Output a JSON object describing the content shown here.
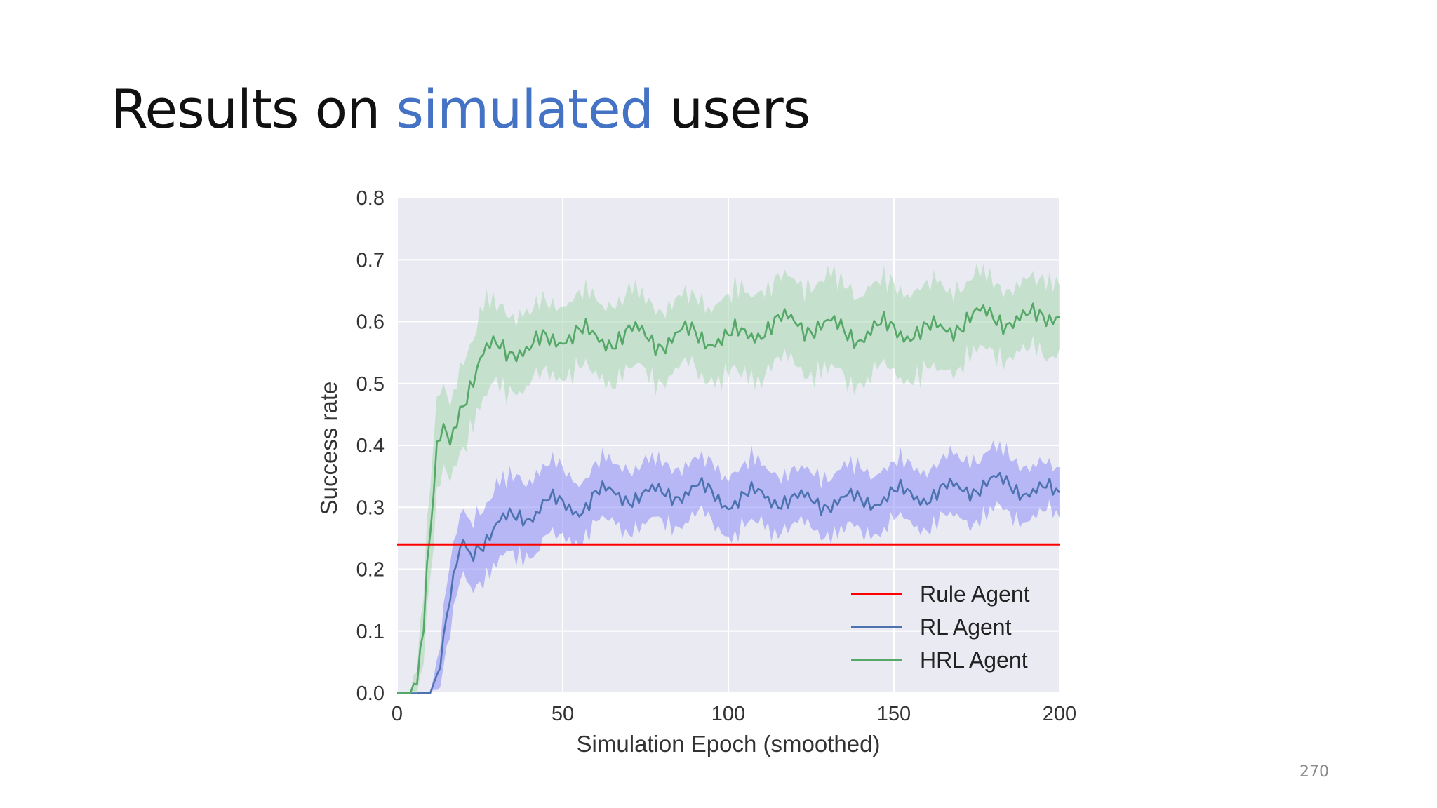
{
  "slide": {
    "title_before": "Results on",
    "title_accent": "simulated",
    "title_after": "users",
    "accent_color": "#4472c4",
    "page_number": "270"
  },
  "chart_data": {
    "type": "line",
    "title": "",
    "xlabel": "Simulation Epoch (smoothed)",
    "ylabel": "Success rate",
    "xlim": [
      0,
      200
    ],
    "ylim": [
      0,
      0.8
    ],
    "xticks": [
      0,
      50,
      100,
      150,
      200
    ],
    "yticks": [
      0.0,
      0.1,
      0.2,
      0.3,
      0.4,
      0.5,
      0.6,
      0.7,
      0.8
    ],
    "xtick_labels": [
      "0",
      "50",
      "100",
      "150",
      "200"
    ],
    "ytick_labels": [
      "0.0",
      "0.1",
      "0.2",
      "0.3",
      "0.4",
      "0.5",
      "0.6",
      "0.7",
      "0.8"
    ],
    "grid": true,
    "background": "#eaeaf2",
    "legend_position": "bottom-right",
    "series": [
      {
        "name": "Rule Agent",
        "color": "#ff0000",
        "kind": "constant",
        "x": [
          0,
          200
        ],
        "y": [
          0.24,
          0.24
        ]
      },
      {
        "name": "RL Agent",
        "color": "#4c72b0",
        "band_color": "#8c8cf7",
        "kind": "line-with-band",
        "x": [
          0,
          10,
          12,
          14,
          16,
          18,
          20,
          22,
          24,
          26,
          28,
          30,
          35,
          40,
          45,
          50,
          55,
          60,
          70,
          80,
          90,
          100,
          110,
          120,
          130,
          140,
          150,
          160,
          170,
          180,
          190,
          200
        ],
        "y": [
          0.0,
          0.0,
          0.03,
          0.09,
          0.15,
          0.2,
          0.24,
          0.22,
          0.24,
          0.25,
          0.26,
          0.27,
          0.28,
          0.29,
          0.31,
          0.3,
          0.3,
          0.32,
          0.32,
          0.32,
          0.33,
          0.31,
          0.32,
          0.31,
          0.31,
          0.31,
          0.32,
          0.32,
          0.33,
          0.34,
          0.33,
          0.32
        ],
        "band": [
          0.0,
          0.0,
          0.02,
          0.04,
          0.05,
          0.05,
          0.05,
          0.05,
          0.05,
          0.05,
          0.05,
          0.05,
          0.05,
          0.05,
          0.05,
          0.05,
          0.04,
          0.04,
          0.04,
          0.04,
          0.04,
          0.04,
          0.04,
          0.04,
          0.04,
          0.04,
          0.04,
          0.04,
          0.04,
          0.04,
          0.04,
          0.03
        ]
      },
      {
        "name": "HRL Agent",
        "color": "#55a868",
        "band_color": "#a6d8ae",
        "kind": "line-with-band",
        "x": [
          0,
          4,
          6,
          8,
          9,
          10,
          11,
          12,
          13,
          14,
          16,
          18,
          20,
          22,
          24,
          26,
          28,
          30,
          35,
          40,
          45,
          50,
          55,
          60,
          70,
          80,
          90,
          100,
          110,
          120,
          130,
          140,
          150,
          160,
          170,
          180,
          190,
          200
        ],
        "y": [
          0.0,
          0.0,
          0.03,
          0.12,
          0.2,
          0.25,
          0.32,
          0.38,
          0.4,
          0.42,
          0.4,
          0.45,
          0.48,
          0.5,
          0.52,
          0.54,
          0.55,
          0.56,
          0.56,
          0.55,
          0.57,
          0.58,
          0.58,
          0.57,
          0.58,
          0.57,
          0.58,
          0.57,
          0.59,
          0.6,
          0.59,
          0.58,
          0.59,
          0.58,
          0.6,
          0.61,
          0.6,
          0.62
        ],
        "band": [
          0.0,
          0.0,
          0.02,
          0.05,
          0.06,
          0.07,
          0.07,
          0.07,
          0.07,
          0.06,
          0.06,
          0.06,
          0.06,
          0.06,
          0.06,
          0.06,
          0.06,
          0.05,
          0.05,
          0.05,
          0.05,
          0.05,
          0.05,
          0.05,
          0.05,
          0.05,
          0.05,
          0.05,
          0.06,
          0.06,
          0.06,
          0.06,
          0.06,
          0.06,
          0.05,
          0.05,
          0.05,
          0.05
        ]
      }
    ]
  }
}
